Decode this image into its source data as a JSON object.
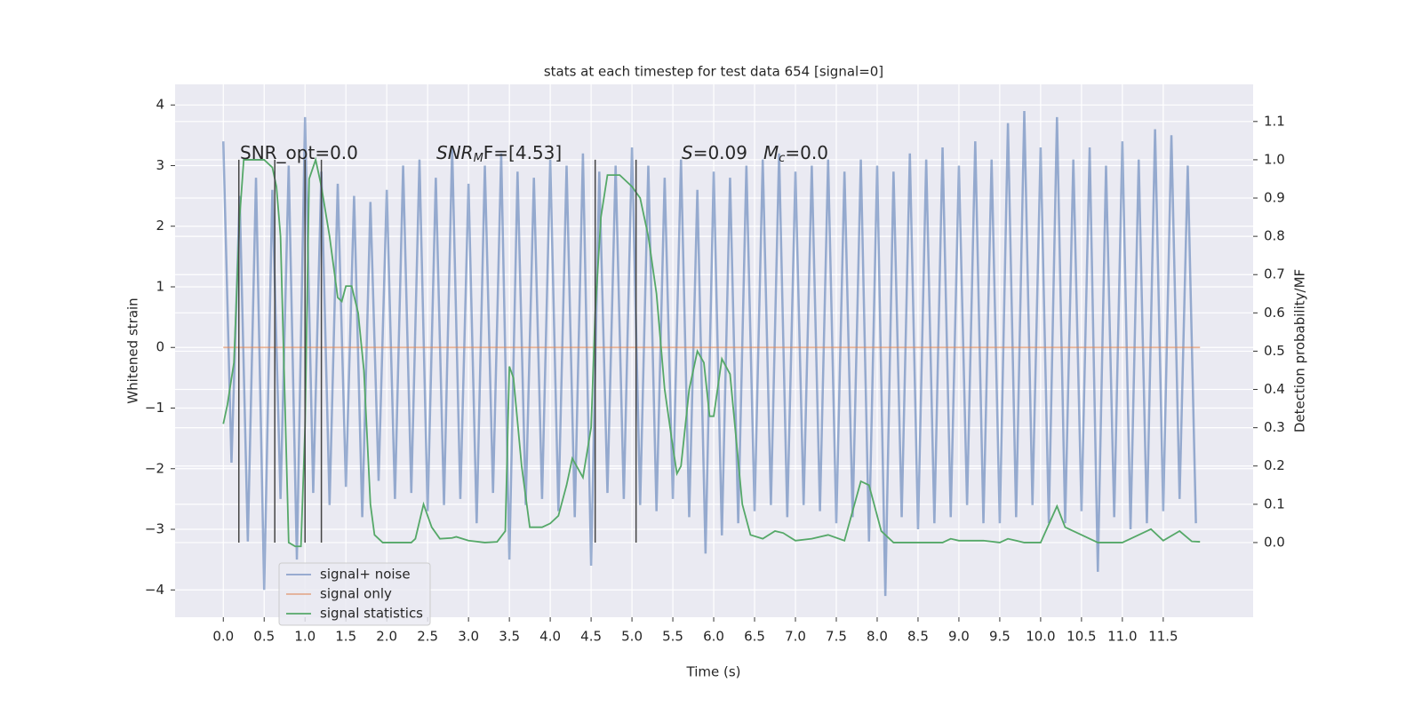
{
  "chart_data": {
    "type": "line",
    "title": "stats at each timestep for test data 654 [signal=0]",
    "xlabel": "Time (s)",
    "ylabel": "Whitened strain",
    "y2label": "Detection probability/MF",
    "xlim": [
      -0.59,
      12.6
    ],
    "ylim": [
      -4.45,
      4.34
    ],
    "y2lim": [
      -0.195,
      1.197
    ],
    "xticks": [
      {
        "value": 0,
        "label": "0.0"
      },
      0.5,
      {
        "value": 1,
        "label": "1.0"
      },
      1.5,
      {
        "value": 2,
        "label": "2.0"
      },
      2.5,
      {
        "value": 3,
        "label": "3.0"
      },
      3.5,
      {
        "value": 4,
        "label": "4.0"
      },
      4.5,
      {
        "value": 5,
        "label": "5.0"
      },
      5.5,
      {
        "value": 6,
        "label": "6.0"
      },
      6.5,
      {
        "value": 7,
        "label": "7.0"
      },
      7.5,
      {
        "value": 8,
        "label": "8.0"
      },
      8.5,
      {
        "value": 9,
        "label": "9.0"
      },
      9.5,
      {
        "value": 10,
        "label": "10.0"
      },
      10.5,
      {
        "value": 11,
        "label": "11.0"
      },
      11.5
    ],
    "yticks": [
      {
        "value": -4,
        "label": "−4"
      },
      {
        "value": -3,
        "label": "−3"
      },
      {
        "value": -2,
        "label": "−2"
      },
      {
        "value": -1,
        "label": "−1"
      },
      0,
      1,
      2,
      3,
      4
    ],
    "y2ticks": [
      {
        "value": 0,
        "label": "0.0"
      },
      0.1,
      0.2,
      0.3,
      0.4,
      0.5,
      0.6,
      0.7,
      0.8,
      0.9,
      {
        "value": 1,
        "label": "1.0"
      },
      1.1
    ],
    "grid": true,
    "legend": "lower left",
    "annotations": [
      [
        "SNR_opt=0.0"
      ],
      [
        "SNR",
        "M",
        "F=[4.53]"
      ],
      [
        "S",
        "=0.09"
      ],
      [
        "M",
        "c",
        "=0.0"
      ]
    ],
    "vlines": {
      "x": [
        0.19,
        0.63,
        1.0,
        1.2,
        4.55,
        5.05
      ],
      "ymin": 0,
      "ymax": 1,
      "color": "#444444",
      "axis": "y2"
    },
    "series": [
      {
        "name": "signal+ noise",
        "color": "#4c72b0",
        "axis": "y",
        "x": [
          0,
          0.1,
          0.2,
          0.3,
          0.4,
          0.5,
          0.6,
          0.7,
          0.8,
          0.9,
          1,
          1.1,
          1.2,
          1.3,
          1.4,
          1.5,
          1.6,
          1.7,
          1.8,
          1.9,
          2,
          2.1,
          2.2,
          2.3,
          2.4,
          2.5,
          2.6,
          2.7,
          2.8,
          2.9,
          3,
          3.1,
          3.2,
          3.3,
          3.4,
          3.5,
          3.6,
          3.7,
          3.8,
          3.9,
          4,
          4.1,
          4.2,
          4.3,
          4.4,
          4.5,
          4.6,
          4.7,
          4.8,
          4.9,
          5,
          5.1,
          5.2,
          5.3,
          5.4,
          5.5,
          5.6,
          5.7,
          5.8,
          5.9,
          6,
          6.1,
          6.2,
          6.3,
          6.4,
          6.5,
          6.6,
          6.7,
          6.8,
          6.9,
          7,
          7.1,
          7.2,
          7.3,
          7.4,
          7.5,
          7.6,
          7.7,
          7.8,
          7.9,
          8,
          8.1,
          8.2,
          8.3,
          8.4,
          8.5,
          8.6,
          8.7,
          8.8,
          8.9,
          9,
          9.1,
          9.2,
          9.3,
          9.4,
          9.5,
          9.6,
          9.7,
          9.8,
          9.9,
          10,
          10.1,
          10.2,
          10.3,
          10.4,
          10.5,
          10.6,
          10.7,
          10.8,
          10.9,
          11,
          11.1,
          11.2,
          11.3,
          11.4,
          11.5,
          11.6,
          11.7,
          11.8,
          11.9
        ],
        "values": [
          3.4,
          -1.9,
          2.5,
          -3.2,
          2.8,
          -4.0,
          2.6,
          -2.5,
          3.0,
          -3.5,
          3.8,
          -2.4,
          2.9,
          -2.6,
          2.7,
          -2.3,
          2.5,
          -2.8,
          2.4,
          -2.2,
          2.6,
          -2.5,
          3.0,
          -2.4,
          3.1,
          -2.7,
          2.8,
          -2.6,
          3.3,
          -2.5,
          2.7,
          -2.9,
          3.0,
          -2.4,
          3.2,
          -3.5,
          2.9,
          -2.6,
          2.8,
          -2.5,
          3.1,
          -2.7,
          3.0,
          -2.8,
          3.2,
          -3.6,
          2.9,
          -2.4,
          3.0,
          -2.5,
          3.3,
          -2.6,
          3.0,
          -2.7,
          2.8,
          -2.5,
          3.1,
          -2.8,
          2.6,
          -3.4,
          2.9,
          -3.1,
          2.8,
          -2.9,
          3.0,
          -2.7,
          3.1,
          -2.6,
          3.2,
          -2.8,
          2.9,
          -2.6,
          3.0,
          -2.7,
          3.1,
          -2.9,
          2.9,
          -2.8,
          3.1,
          -3.2,
          3.0,
          -4.1,
          2.9,
          -2.8,
          3.2,
          -3.0,
          3.1,
          -2.9,
          3.3,
          -2.8,
          3.0,
          -2.6,
          3.4,
          -2.9,
          3.1,
          -2.9,
          3.7,
          -2.8,
          3.9,
          -2.6,
          3.3,
          -2.9,
          3.8,
          -2.9,
          3.1,
          -2.7,
          3.3,
          -3.7,
          3.0,
          -2.8,
          3.4,
          -3.0,
          3.1,
          -2.9,
          3.6,
          -2.7,
          3.5,
          -2.5,
          3.0,
          -2.9
        ]
      },
      {
        "name": "signal only",
        "color": "#dd8452",
        "axis": "y",
        "x": [
          0,
          11.95
        ],
        "values": [
          0,
          0
        ]
      },
      {
        "name": "signal statistics",
        "color": "#55a868",
        "axis": "y2",
        "x": [
          0,
          0.05,
          0.13,
          0.2,
          0.25,
          0.35,
          0.5,
          0.6,
          0.65,
          0.7,
          0.75,
          0.8,
          0.88,
          0.95,
          1.0,
          1.05,
          1.13,
          1.2,
          1.3,
          1.4,
          1.45,
          1.5,
          1.57,
          1.65,
          1.72,
          1.8,
          1.85,
          1.95,
          2.1,
          2.3,
          2.35,
          2.45,
          2.55,
          2.65,
          2.8,
          2.85,
          3.0,
          3.2,
          3.35,
          3.45,
          3.5,
          3.55,
          3.65,
          3.75,
          3.9,
          4.0,
          4.1,
          4.2,
          4.27,
          4.4,
          4.5,
          4.55,
          4.62,
          4.7,
          4.85,
          5.0,
          5.1,
          5.2,
          5.3,
          5.4,
          5.5,
          5.55,
          5.6,
          5.7,
          5.8,
          5.88,
          5.95,
          6.0,
          6.1,
          6.2,
          6.35,
          6.45,
          6.6,
          6.75,
          6.85,
          7.0,
          7.2,
          7.4,
          7.6,
          7.8,
          7.9,
          8.05,
          8.2,
          8.5,
          8.8,
          8.9,
          9.0,
          9.3,
          9.5,
          9.6,
          9.8,
          10.0,
          10.2,
          10.3,
          10.5,
          10.7,
          11.0,
          11.2,
          11.35,
          11.5,
          11.7,
          11.85,
          11.95
        ],
        "values": [
          0.31,
          0.36,
          0.47,
          0.85,
          1.0,
          1.0,
          1.0,
          0.98,
          0.93,
          0.8,
          0.4,
          0.0,
          -0.01,
          -0.01,
          0.3,
          0.95,
          1.0,
          0.93,
          0.8,
          0.64,
          0.63,
          0.67,
          0.67,
          0.6,
          0.45,
          0.1,
          0.02,
          0.0,
          0.0,
          0.0,
          0.01,
          0.1,
          0.04,
          0.01,
          0.012,
          0.015,
          0.005,
          0.0,
          0.002,
          0.03,
          0.46,
          0.43,
          0.2,
          0.04,
          0.04,
          0.05,
          0.07,
          0.15,
          0.22,
          0.17,
          0.3,
          0.6,
          0.85,
          0.96,
          0.96,
          0.93,
          0.9,
          0.8,
          0.65,
          0.4,
          0.25,
          0.18,
          0.2,
          0.4,
          0.5,
          0.47,
          0.33,
          0.33,
          0.48,
          0.44,
          0.1,
          0.02,
          0.01,
          0.03,
          0.025,
          0.005,
          0.01,
          0.02,
          0.005,
          0.16,
          0.15,
          0.03,
          0.0,
          0.0,
          0.0,
          0.01,
          0.005,
          0.005,
          0.0,
          0.01,
          0.0,
          0.0,
          0.095,
          0.04,
          0.02,
          0.0,
          0.0,
          0.02,
          0.035,
          0.005,
          0.03,
          0.003,
          0.002
        ]
      }
    ]
  }
}
